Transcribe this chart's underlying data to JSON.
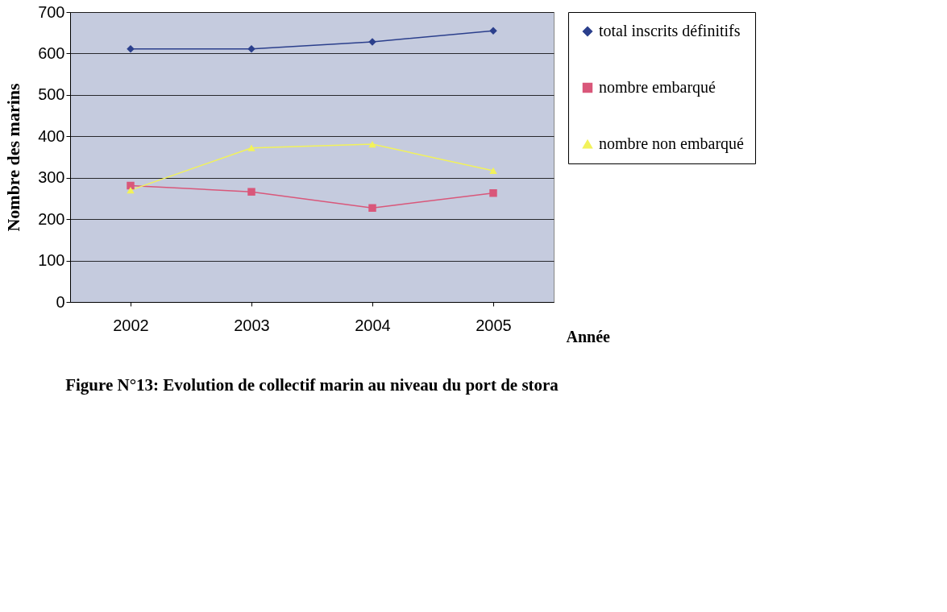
{
  "chart_data": {
    "type": "line",
    "title": "Figure N°13:  Evolution de collectif marin au niveau du port de stora",
    "xlabel": "Année",
    "ylabel": "Nombre des marins",
    "categories": [
      "2002",
      "2003",
      "2004",
      "2005"
    ],
    "series": [
      {
        "name": "total inscrits définitifs",
        "color": "#2b3f8c",
        "marker": "diamond",
        "values": [
          611,
          611,
          628,
          655
        ]
      },
      {
        "name": "nombre embarqué",
        "color": "#d9577a",
        "marker": "square",
        "values": [
          281,
          266,
          227,
          263
        ]
      },
      {
        "name": "nombre non embarqué",
        "color": "#f2f25a",
        "marker": "triangle",
        "values": [
          270,
          372,
          381,
          317
        ]
      }
    ],
    "ylim": [
      0,
      700
    ],
    "yticks": [
      0,
      100,
      200,
      300,
      400,
      500,
      600,
      700
    ],
    "grid": "y",
    "legend": "right",
    "line_style": "solid"
  }
}
